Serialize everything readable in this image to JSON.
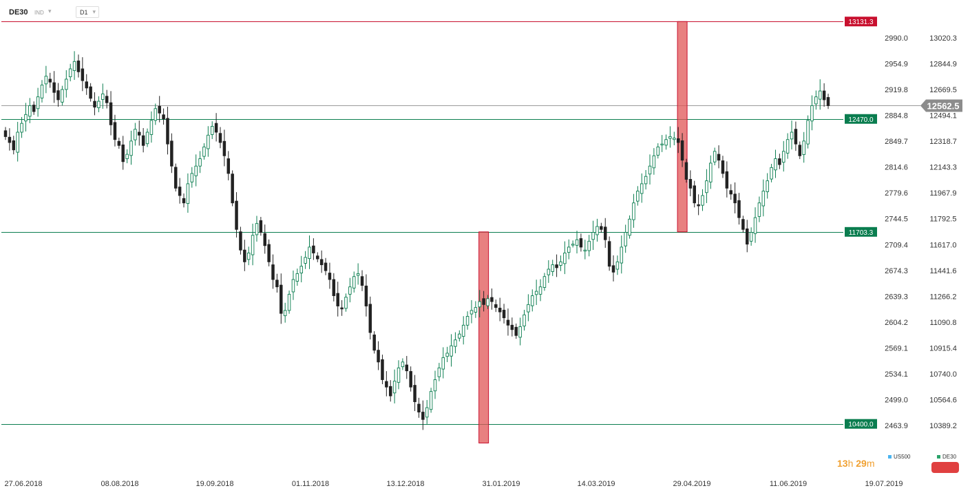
{
  "header": {
    "symbol": "DE30",
    "subtitle": "IND",
    "timeframe": "D1"
  },
  "timer": {
    "hours": "13",
    "h_unit": "h",
    "minutes": "29",
    "m_unit": "m"
  },
  "legend": [
    {
      "name": "US500",
      "color": "#4ab4f0"
    },
    {
      "name": "DE30",
      "color": "#2aa36a"
    }
  ],
  "chart_data": {
    "type": "candlestick",
    "x_ticks": [
      "27.06.2018",
      "08.08.2018",
      "19.09.2018",
      "01.11.2018",
      "13.12.2018",
      "31.01.2019",
      "14.03.2019",
      "29.04.2019",
      "11.06.2019",
      "19.07.2019"
    ],
    "y_ticks_left": [
      "2990.0",
      "2954.9",
      "2919.8",
      "2884.8",
      "2849.7",
      "2814.6",
      "2779.6",
      "2744.5",
      "2709.4",
      "2674.3",
      "2639.3",
      "2604.2",
      "2569.1",
      "2534.1",
      "2499.0",
      "2463.9"
    ],
    "y_ticks_right": [
      "13020.3",
      "12844.9",
      "12669.5",
      "12494.1",
      "12318.7",
      "12143.3",
      "11967.9",
      "11792.5",
      "11617.0",
      "11441.6",
      "11266.2",
      "11090.8",
      "10915.4",
      "10740.0",
      "10564.6",
      "10389.2"
    ],
    "ylim": [
      10335,
      13245
    ],
    "levels": [
      {
        "value": 13131.3,
        "label": "13131.3",
        "color": "#c8102e"
      },
      {
        "value": 12470.0,
        "label": "12470.0",
        "color": "#0a7d4f"
      },
      {
        "value": 11703.3,
        "label": "11703.3",
        "color": "#0a7d4f"
      },
      {
        "value": 10400.0,
        "label": "10400.0",
        "color": "#0a7d4f"
      }
    ],
    "current_price": {
      "value": 12562.5,
      "label": "12562.5",
      "color": "#8c8c8c"
    },
    "highlight_rects": [
      {
        "x_index": 118,
        "low": 10270,
        "high": 11703.3,
        "color": "#e05555"
      },
      {
        "x_index": 167,
        "low": 11703.3,
        "high": 13131.3,
        "color": "#e05555"
      }
    ],
    "series": [
      {
        "name": "DE30",
        "close": [
          12350,
          12310,
          12260,
          12380,
          12440,
          12500,
          12560,
          12520,
          12620,
          12700,
          12760,
          12720,
          12650,
          12600,
          12670,
          12740,
          12810,
          12860,
          12790,
          12730,
          12680,
          12610,
          12550,
          12590,
          12640,
          12580,
          12430,
          12330,
          12290,
          12180,
          12230,
          12320,
          12400,
          12360,
          12290,
          12380,
          12460,
          12540,
          12510,
          12470,
          12300,
          12150,
          12000,
          11950,
          11900,
          12030,
          12100,
          12150,
          12200,
          12280,
          12360,
          12420,
          12380,
          12310,
          12220,
          12100,
          11900,
          11720,
          11580,
          11500,
          11560,
          11680,
          11760,
          11700,
          11610,
          11500,
          11380,
          11330,
          11150,
          11170,
          11280,
          11380,
          11420,
          11470,
          11530,
          11600,
          11560,
          11520,
          11480,
          11440,
          11380,
          11270,
          11200,
          11180,
          11260,
          11330,
          11400,
          11420,
          11340,
          11200,
          11020,
          10900,
          10820,
          10700,
          10650,
          10590,
          10690,
          10780,
          10820,
          10760,
          10650,
          10550,
          10480,
          10430,
          10510,
          10620,
          10700,
          10780,
          10850,
          10880,
          10930,
          10970,
          11010,
          11070,
          11130,
          11170,
          11190,
          11230,
          11210,
          11250,
          11230,
          11190,
          11160,
          11120,
          11070,
          11040,
          11000,
          11060,
          11140,
          11210,
          11270,
          11300,
          11330,
          11400,
          11450,
          11480,
          11460,
          11500,
          11560,
          11600,
          11620,
          11650,
          11600,
          11580,
          11640,
          11700,
          11740,
          11720,
          11650,
          11470,
          11430,
          11500,
          11600,
          11700,
          11790,
          11900,
          11980,
          12030,
          12080,
          12150,
          12220,
          12280,
          12300,
          12330,
          12350,
          12340,
          12310,
          12190,
          12060,
          12000,
          11900,
          11880,
          11950,
          12050,
          12170,
          12250,
          12190,
          12100,
          12000,
          11960,
          11900,
          11800,
          11720,
          11620,
          11700,
          11800,
          11900,
          11980,
          12050,
          12140,
          12200,
          12160,
          12250,
          12330,
          12380,
          12300,
          12220,
          12320,
          12460,
          12560,
          12620,
          12660,
          12600,
          12560
        ]
      }
    ]
  }
}
